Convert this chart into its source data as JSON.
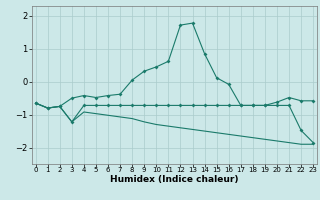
{
  "x": [
    0,
    1,
    2,
    3,
    4,
    5,
    6,
    7,
    8,
    9,
    10,
    11,
    12,
    13,
    14,
    15,
    16,
    17,
    18,
    19,
    20,
    21,
    22,
    23
  ],
  "line1": [
    -0.65,
    -0.8,
    -0.75,
    -0.5,
    -0.42,
    -0.48,
    -0.42,
    -0.38,
    0.05,
    0.32,
    0.45,
    0.62,
    1.72,
    1.78,
    0.85,
    0.12,
    -0.08,
    -0.72,
    -0.72,
    -0.72,
    -0.62,
    -0.48,
    -0.58,
    -0.58
  ],
  "line2": [
    -0.65,
    -0.8,
    -0.75,
    -1.22,
    -0.72,
    -0.72,
    -0.72,
    -0.72,
    -0.72,
    -0.72,
    -0.72,
    -0.72,
    -0.72,
    -0.72,
    -0.72,
    -0.72,
    -0.72,
    -0.72,
    -0.72,
    -0.72,
    -0.72,
    -0.72,
    -1.48,
    -1.85
  ],
  "line3": [
    -0.65,
    -0.8,
    -0.75,
    -1.22,
    -0.92,
    -0.97,
    -1.02,
    -1.07,
    -1.12,
    -1.22,
    -1.3,
    -1.35,
    -1.4,
    -1.45,
    -1.5,
    -1.55,
    -1.6,
    -1.65,
    -1.7,
    -1.75,
    -1.8,
    -1.85,
    -1.9,
    -1.9
  ],
  "line_color": "#1a7a6a",
  "bg_color": "#cce8e8",
  "grid_color": "#aacccc",
  "xlabel": "Humidex (Indice chaleur)",
  "ylim": [
    -2.5,
    2.3
  ],
  "xlim": [
    -0.3,
    23.3
  ],
  "yticks": [
    -2,
    -1,
    0,
    1,
    2
  ],
  "xticks": [
    0,
    1,
    2,
    3,
    4,
    5,
    6,
    7,
    8,
    9,
    10,
    11,
    12,
    13,
    14,
    15,
    16,
    17,
    18,
    19,
    20,
    21,
    22,
    23
  ]
}
